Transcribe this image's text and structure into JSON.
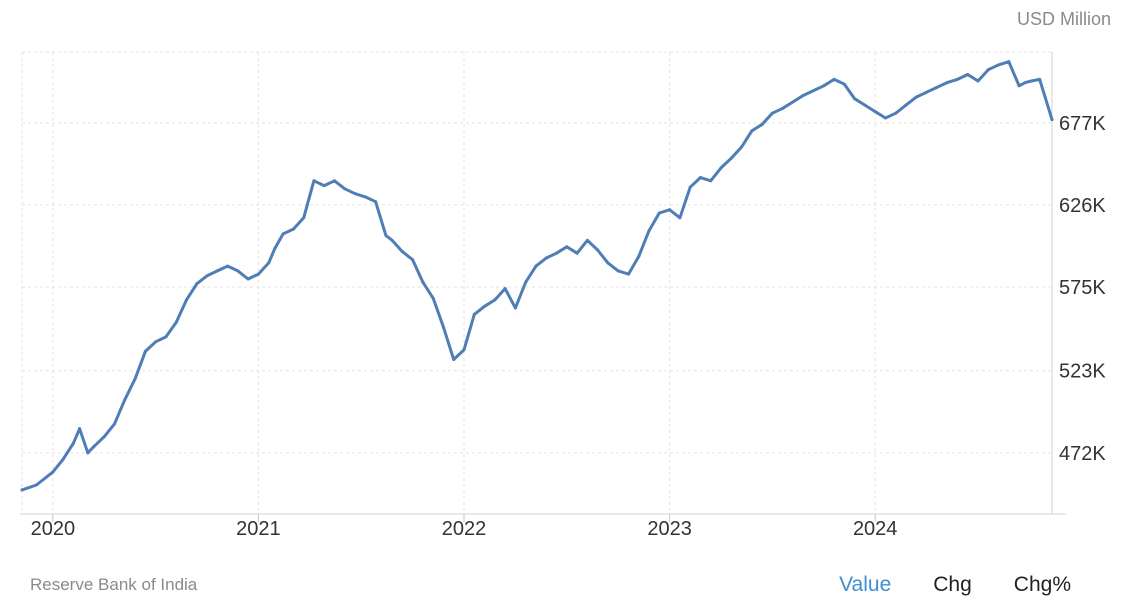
{
  "header": {
    "unit": "USD Million"
  },
  "footer": {
    "source": "Reserve Bank of India",
    "tabs": [
      {
        "label": "Value",
        "active": true
      },
      {
        "label": "Chg",
        "active": false
      },
      {
        "label": "Chg%",
        "active": false
      }
    ]
  },
  "colors": {
    "line": "#4f7db5",
    "grid": "#e3e3e3",
    "active_tab": "#3d8fd1"
  },
  "chart_data": {
    "type": "line",
    "title": "",
    "xlabel": "",
    "ylabel": "USD Million",
    "grid": true,
    "xlim": [
      2019.85,
      2024.86
    ],
    "ylim": [
      434000,
      721000
    ],
    "x_ticks": [
      2020,
      2021,
      2022,
      2023,
      2024
    ],
    "x_tick_labels": [
      "2020",
      "2021",
      "2022",
      "2023",
      "2024"
    ],
    "y_ticks": [
      472000,
      523000,
      575000,
      626000,
      677000
    ],
    "y_tick_labels": [
      "472K",
      "523K",
      "575K",
      "626K",
      "677K"
    ],
    "series": [
      {
        "name": "",
        "x": [
          2019.85,
          2019.92,
          2020.0,
          2020.05,
          2020.1,
          2020.13,
          2020.17,
          2020.2,
          2020.25,
          2020.3,
          2020.35,
          2020.4,
          2020.45,
          2020.5,
          2020.55,
          2020.6,
          2020.65,
          2020.7,
          2020.75,
          2020.8,
          2020.85,
          2020.9,
          2020.95,
          2021.0,
          2021.05,
          2021.08,
          2021.12,
          2021.17,
          2021.22,
          2021.27,
          2021.32,
          2021.37,
          2021.42,
          2021.47,
          2021.52,
          2021.57,
          2021.62,
          2021.65,
          2021.7,
          2021.75,
          2021.8,
          2021.85,
          2021.9,
          2021.95,
          2022.0,
          2022.05,
          2022.1,
          2022.15,
          2022.2,
          2022.25,
          2022.3,
          2022.35,
          2022.4,
          2022.45,
          2022.5,
          2022.55,
          2022.6,
          2022.65,
          2022.7,
          2022.75,
          2022.8,
          2022.85,
          2022.9,
          2022.95,
          2023.0,
          2023.05,
          2023.1,
          2023.15,
          2023.2,
          2023.25,
          2023.3,
          2023.35,
          2023.4,
          2023.45,
          2023.5,
          2023.55,
          2023.6,
          2023.65,
          2023.7,
          2023.75,
          2023.8,
          2023.85,
          2023.9,
          2023.95,
          2024.0,
          2024.05,
          2024.1,
          2024.15,
          2024.2,
          2024.25,
          2024.3,
          2024.35,
          2024.4,
          2024.45,
          2024.5,
          2024.55,
          2024.6,
          2024.65,
          2024.7,
          2024.73,
          2024.76,
          2024.8,
          2024.86
        ],
        "values": [
          449000,
          452000,
          460000,
          468000,
          478000,
          487000,
          472000,
          476000,
          482000,
          490000,
          505000,
          518000,
          535000,
          541000,
          544000,
          553000,
          567000,
          577000,
          582000,
          585000,
          588000,
          585000,
          580000,
          583000,
          590000,
          599000,
          608000,
          611000,
          618000,
          641000,
          638000,
          641000,
          636000,
          633000,
          631000,
          628000,
          607000,
          604000,
          597000,
          592000,
          578000,
          568000,
          550000,
          530000,
          536000,
          558000,
          563000,
          567000,
          574000,
          562000,
          578000,
          588000,
          593000,
          596000,
          600000,
          596000,
          604000,
          598000,
          590000,
          585000,
          583000,
          594000,
          610000,
          621000,
          623000,
          618000,
          637000,
          643000,
          641000,
          649000,
          655000,
          662000,
          672000,
          676000,
          683000,
          686000,
          690000,
          694000,
          697000,
          700000,
          704000,
          701000,
          692000,
          688000,
          684000,
          680000,
          683000,
          688000,
          693000,
          696000,
          699000,
          702000,
          704000,
          707000,
          703000,
          710000,
          713000,
          715000,
          700000,
          702000,
          703000,
          704000,
          679000
        ]
      }
    ]
  }
}
